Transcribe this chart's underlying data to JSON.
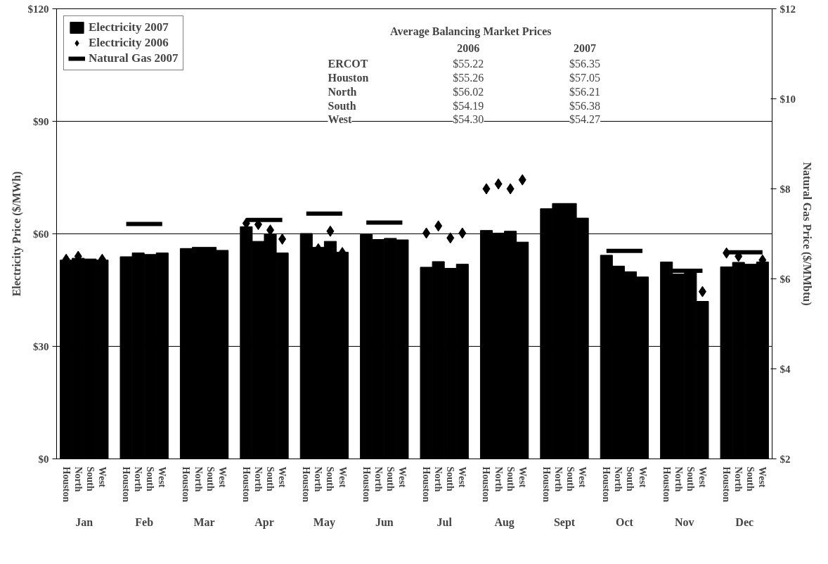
{
  "chart_data": {
    "type": "bar",
    "ylabel": "Electricity Price ($/MWh)",
    "y2label": "Natural Gas Price ($/MMbtu)",
    "categories": [
      "Houston",
      "North",
      "South",
      "West",
      "Houston",
      "North",
      "South",
      "West",
      "Houston",
      "North",
      "South",
      "West",
      "Houston",
      "North",
      "South",
      "West",
      "Houston",
      "North",
      "South",
      "West",
      "Houston",
      "North",
      "South",
      "West",
      "Houston",
      "North",
      "South",
      "West",
      "Houston",
      "North",
      "South",
      "West",
      "Houston",
      "North",
      "South",
      "West",
      "Houston",
      "North",
      "South",
      "West",
      "Houston",
      "North",
      "South",
      "West",
      "Houston",
      "North",
      "South",
      "West"
    ],
    "series": [
      {
        "name": "Electricity 2007",
        "color": "#000000",
        "values": [
          53.0,
          53.5,
          53.3,
          53.0,
          53.9,
          54.9,
          54.5,
          54.9,
          56.1,
          56.4,
          56.4,
          55.6,
          61.9,
          58.0,
          59.9,
          54.9,
          60.1,
          56.4,
          58.0,
          55.1,
          59.8,
          58.5,
          58.8,
          58.4,
          51.1,
          52.6,
          50.8,
          51.9,
          60.9,
          60.2,
          60.7,
          57.8,
          66.7,
          68.1,
          68.1,
          64.2,
          54.3,
          51.4,
          49.9,
          48.5,
          52.5,
          49.3,
          50.2,
          42.0,
          51.2,
          52.4,
          51.9,
          52.5
        ]
      },
      {
        "name": "Electricity 2006",
        "type": "scatter",
        "marker": "diamond",
        "color": "#000000",
        "values": [
          53.2,
          54.0,
          null,
          53.2,
          null,
          null,
          null,
          null,
          null,
          null,
          null,
          null,
          62.8,
          62.5,
          61.0,
          58.6,
          null,
          56.0,
          60.7,
          55.0,
          null,
          null,
          null,
          null,
          60.2,
          62.1,
          58.9,
          60.2,
          72.0,
          73.3,
          72.0,
          74.4,
          null,
          null,
          null,
          null,
          null,
          null,
          null,
          null,
          null,
          null,
          null,
          44.6,
          54.9,
          54.0,
          null,
          53.0
        ]
      },
      {
        "name": "Natural Gas 2007",
        "type": "line",
        "axis": "y2",
        "color": "#000000",
        "values": [
          null,
          null,
          null,
          null,
          7.22,
          7.22,
          7.22,
          7.22,
          null,
          null,
          null,
          null,
          7.31,
          7.31,
          7.31,
          7.31,
          7.45,
          7.45,
          7.45,
          7.45,
          7.25,
          7.25,
          7.25,
          7.25,
          null,
          null,
          null,
          null,
          null,
          null,
          null,
          null,
          null,
          null,
          null,
          null,
          6.62,
          6.62,
          6.62,
          6.62,
          6.18,
          6.18,
          6.18,
          6.18,
          6.59,
          6.59,
          6.59,
          6.59
        ]
      }
    ],
    "ylim": [
      0,
      120
    ],
    "yticks": [
      {
        "value": 0,
        "label": "$0"
      },
      {
        "value": 30,
        "label": "$30"
      },
      {
        "value": 60,
        "label": "$60"
      },
      {
        "value": 90,
        "label": "$90"
      },
      {
        "value": 120,
        "label": "$120"
      }
    ],
    "y2lim": [
      2,
      12
    ],
    "y2ticks": [
      {
        "value": 2,
        "label": "$2"
      },
      {
        "value": 4,
        "label": "$4"
      },
      {
        "value": 6,
        "label": "$6"
      },
      {
        "value": 8,
        "label": "$8"
      },
      {
        "value": 10,
        "label": "$10"
      },
      {
        "value": 12,
        "label": "$12"
      }
    ],
    "grid": "y",
    "legend": "top left",
    "annotations": [
      "Jan",
      "Feb",
      "Mar",
      "Apr",
      "May",
      "Jun",
      "Jul",
      "Aug",
      "Sept",
      "Oct",
      "Nov",
      "Dec",
      "Average Balancing Market Prices",
      "2006",
      "2007",
      "ERCOT",
      "$55.22",
      "$56.35",
      "Houston",
      "$55.26",
      "$57.05",
      "North",
      "$56.02",
      "$56.21",
      "South",
      "$54.19",
      "$56.38",
      "West",
      "$54.30",
      "$54.27"
    ]
  }
}
